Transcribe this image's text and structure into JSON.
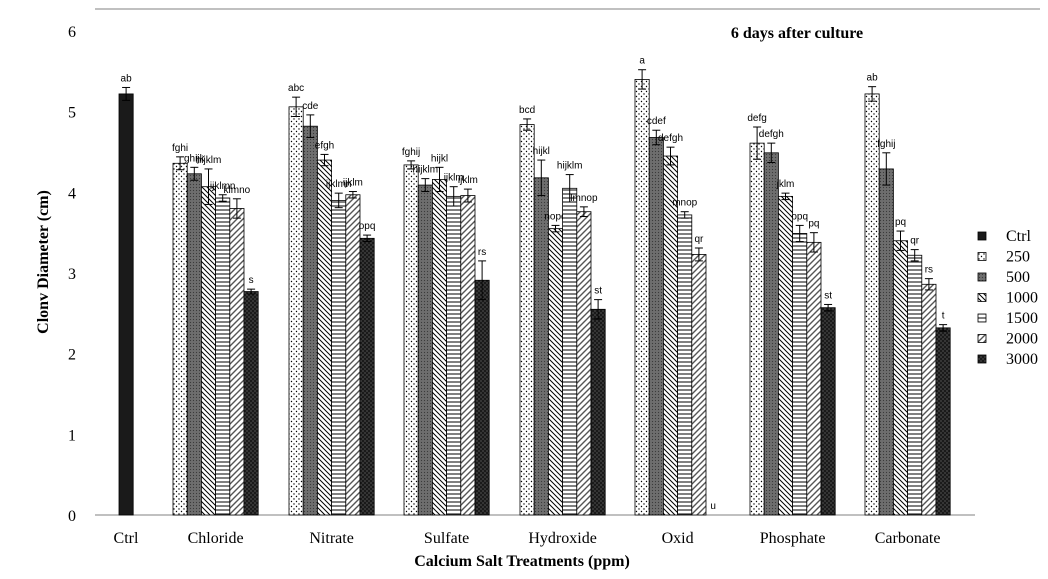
{
  "chart_data": {
    "type": "bar",
    "title": "6 days after culture",
    "xlabel": "Calcium Salt Treatments (ppm)",
    "ylabel": "Clonv Diameter (cm)",
    "ylim": [
      0,
      6
    ],
    "yticks": [
      "0",
      "1",
      "2",
      "3",
      "4",
      "5",
      "6"
    ],
    "legend_position": "right",
    "series_names": [
      "Ctrl",
      "250",
      "500",
      "1000",
      "1500",
      "2000",
      "3000"
    ],
    "groups": [
      {
        "category": "Ctrl",
        "bars": [
          {
            "series": "Ctrl",
            "value": 5.22,
            "error": 0.08,
            "label": "ab"
          }
        ]
      },
      {
        "category": "Chloride",
        "bars": [
          {
            "series": "250",
            "value": 4.36,
            "error": 0.08,
            "label": "fghi"
          },
          {
            "series": "500",
            "value": 4.23,
            "error": 0.08,
            "label": "ghijk"
          },
          {
            "series": "1000",
            "value": 4.07,
            "error": 0.22,
            "label": "hijklm"
          },
          {
            "series": "1500",
            "value": 3.93,
            "error": 0.04,
            "label": "ijklmn"
          },
          {
            "series": "2000",
            "value": 3.8,
            "error": 0.12,
            "label": "klmno"
          },
          {
            "series": "3000",
            "value": 2.77,
            "error": 0.03,
            "label": "s"
          }
        ]
      },
      {
        "category": "Nitrate",
        "bars": [
          {
            "series": "250",
            "value": 5.06,
            "error": 0.12,
            "label": "abc"
          },
          {
            "series": "500",
            "value": 4.82,
            "error": 0.14,
            "label": "cde"
          },
          {
            "series": "1000",
            "value": 4.4,
            "error": 0.07,
            "label": "efgh"
          },
          {
            "series": "1500",
            "value": 3.9,
            "error": 0.09,
            "label": "ijklmn"
          },
          {
            "series": "2000",
            "value": 3.97,
            "error": 0.04,
            "label": "ijklm"
          },
          {
            "series": "3000",
            "value": 3.43,
            "error": 0.04,
            "label": "opq"
          }
        ]
      },
      {
        "category": "Sulfate",
        "bars": [
          {
            "series": "250",
            "value": 4.34,
            "error": 0.05,
            "label": "fghij"
          },
          {
            "series": "500",
            "value": 4.09,
            "error": 0.08,
            "label": "hijklm"
          },
          {
            "series": "1000",
            "value": 4.16,
            "error": 0.15,
            "label": "hijkl"
          },
          {
            "series": "1500",
            "value": 3.95,
            "error": 0.12,
            "label": "ijklm"
          },
          {
            "series": "2000",
            "value": 3.96,
            "error": 0.08,
            "label": "ijklm"
          },
          {
            "series": "3000",
            "value": 2.91,
            "error": 0.24,
            "label": "rs"
          }
        ]
      },
      {
        "category": "Hydroxide",
        "bars": [
          {
            "series": "250",
            "value": 4.84,
            "error": 0.07,
            "label": "bcd"
          },
          {
            "series": "500",
            "value": 4.18,
            "error": 0.22,
            "label": "hijkl"
          },
          {
            "series": "1000",
            "value": 3.55,
            "error": 0.04,
            "label": "nopq"
          },
          {
            "series": "1500",
            "value": 4.05,
            "error": 0.17,
            "label": "hijklm"
          },
          {
            "series": "2000",
            "value": 3.76,
            "error": 0.06,
            "label": "lmnop"
          },
          {
            "series": "3000",
            "value": 2.55,
            "error": 0.12,
            "label": "st"
          }
        ]
      },
      {
        "category": "Oxid",
        "bars": [
          {
            "series": "250",
            "value": 5.4,
            "error": 0.12,
            "label": "a"
          },
          {
            "series": "500",
            "value": 4.68,
            "error": 0.09,
            "label": "cdef"
          },
          {
            "series": "1000",
            "value": 4.45,
            "error": 0.11,
            "label": "defgh"
          },
          {
            "series": "1500",
            "value": 3.72,
            "error": 0.04,
            "label": "mnop"
          },
          {
            "series": "2000",
            "value": 3.23,
            "error": 0.08,
            "label": "qr"
          },
          {
            "series": "3000",
            "value": 0,
            "error": 0,
            "label": "u"
          }
        ]
      },
      {
        "category": "Phosphate",
        "bars": [
          {
            "series": "250",
            "value": 4.61,
            "error": 0.2,
            "label": "defg"
          },
          {
            "series": "500",
            "value": 4.49,
            "error": 0.12,
            "label": "defgh"
          },
          {
            "series": "1000",
            "value": 3.95,
            "error": 0.04,
            "label": "jklm"
          },
          {
            "series": "1500",
            "value": 3.49,
            "error": 0.1,
            "label": "opq"
          },
          {
            "series": "2000",
            "value": 3.38,
            "error": 0.12,
            "label": "pq"
          },
          {
            "series": "3000",
            "value": 2.57,
            "error": 0.04,
            "label": "st"
          }
        ]
      },
      {
        "category": "Carbonate",
        "bars": [
          {
            "series": "250",
            "value": 5.22,
            "error": 0.09,
            "label": "ab"
          },
          {
            "series": "500",
            "value": 4.29,
            "error": 0.2,
            "label": "fghij"
          },
          {
            "series": "1000",
            "value": 3.4,
            "error": 0.12,
            "label": "pq"
          },
          {
            "series": "1500",
            "value": 3.22,
            "error": 0.07,
            "label": "qr"
          },
          {
            "series": "2000",
            "value": 2.86,
            "error": 0.07,
            "label": "rs"
          },
          {
            "series": "3000",
            "value": 2.32,
            "error": 0.04,
            "label": "t"
          }
        ]
      }
    ]
  },
  "legend": {
    "items": [
      {
        "label": "Ctrl",
        "pattern": "solid"
      },
      {
        "label": "250",
        "pattern": "dots"
      },
      {
        "label": "500",
        "pattern": "dark-gray"
      },
      {
        "label": "1000",
        "pattern": "diagonal-down"
      },
      {
        "label": "1500",
        "pattern": "horizontal"
      },
      {
        "label": "2000",
        "pattern": "diagonal-up"
      },
      {
        "label": "3000",
        "pattern": "dark-dots"
      }
    ]
  },
  "colors": {
    "ink": "#000000",
    "dark_bar": "#1a1a1a",
    "mid_bar": "#6e6e6e",
    "axis": "#808080"
  }
}
